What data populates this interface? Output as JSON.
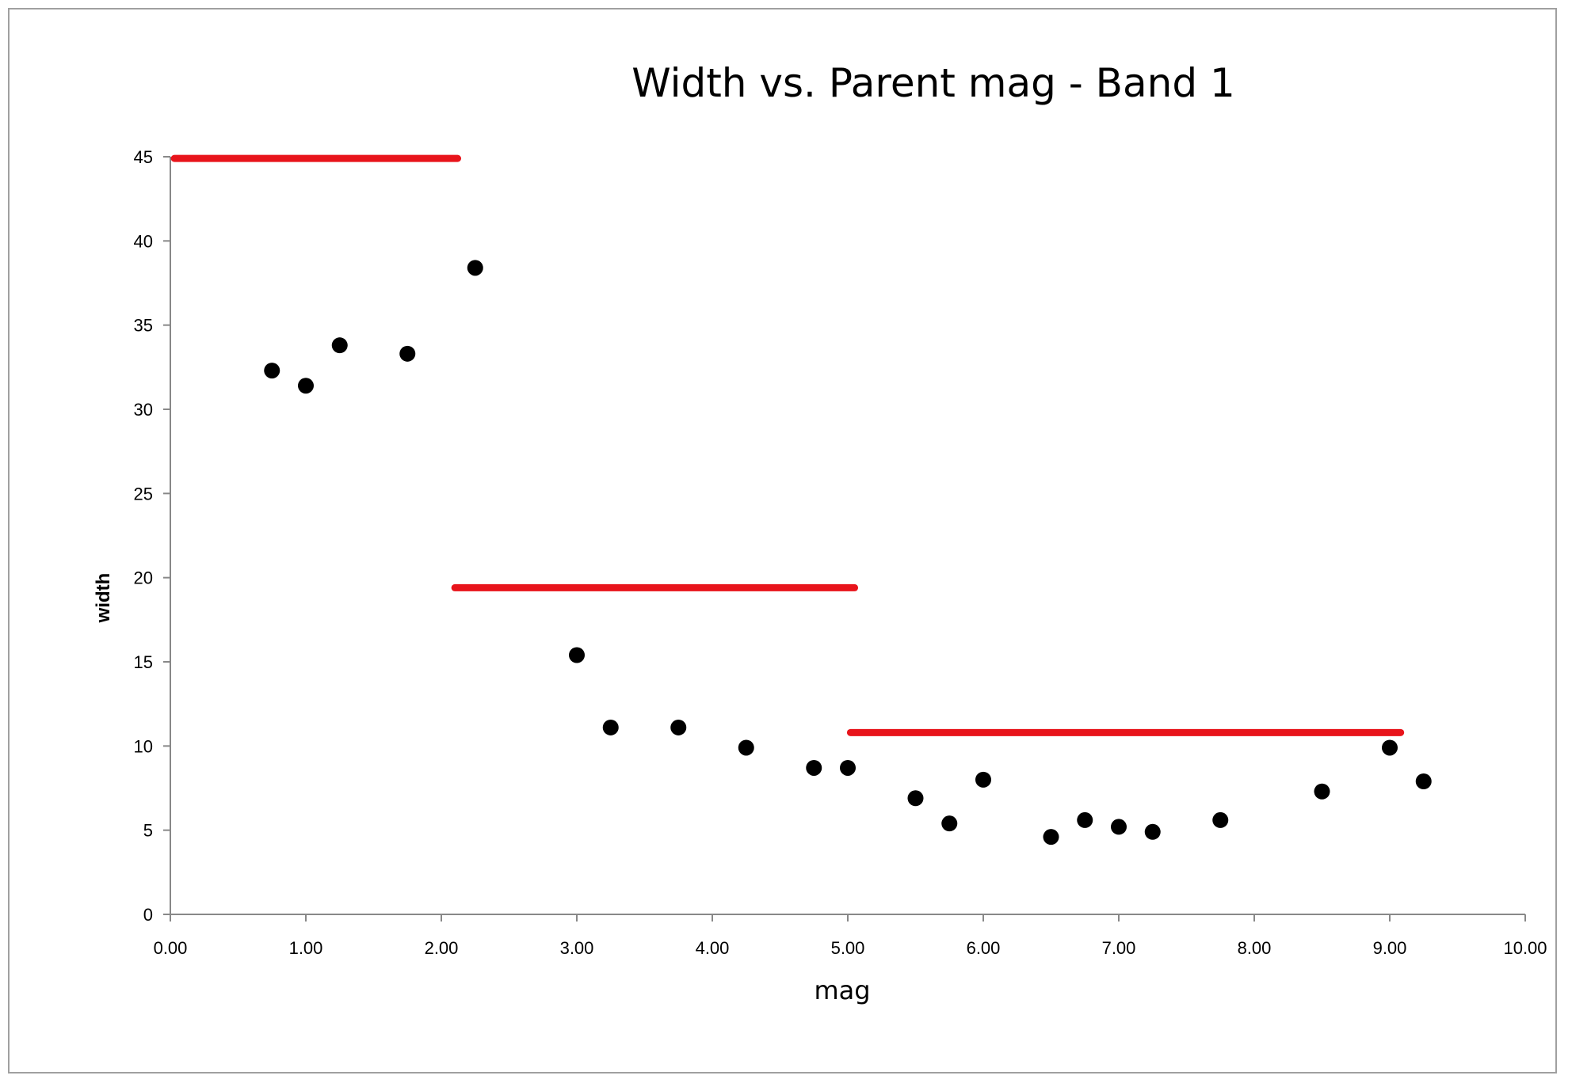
{
  "chart_data": {
    "type": "scatter",
    "title": "Width vs. Parent mag - Band 1",
    "xlabel": "mag",
    "ylabel": "width",
    "xlim": [
      0,
      10
    ],
    "ylim": [
      0,
      45
    ],
    "x_ticks": [
      "0.00",
      "1.00",
      "2.00",
      "3.00",
      "4.00",
      "5.00",
      "6.00",
      "7.00",
      "8.00",
      "9.00",
      "10.00"
    ],
    "y_ticks": [
      "0",
      "5",
      "10",
      "15",
      "20",
      "25",
      "30",
      "35",
      "40",
      "45"
    ],
    "grid": false,
    "legend": "none",
    "series": [
      {
        "type": "scatter",
        "color": "#000000",
        "points": [
          [
            0.75,
            32.3
          ],
          [
            1.0,
            31.4
          ],
          [
            1.25,
            33.8
          ],
          [
            1.75,
            33.3
          ],
          [
            2.25,
            38.4
          ],
          [
            3.0,
            15.4
          ],
          [
            3.25,
            11.1
          ],
          [
            3.75,
            11.1
          ],
          [
            4.25,
            9.9
          ],
          [
            4.75,
            8.7
          ],
          [
            5.0,
            8.7
          ],
          [
            5.5,
            6.9
          ],
          [
            5.75,
            5.4
          ],
          [
            6.0,
            8.0
          ],
          [
            6.5,
            4.6
          ],
          [
            6.75,
            5.6
          ],
          [
            7.0,
            5.2
          ],
          [
            7.25,
            4.9
          ],
          [
            7.75,
            5.6
          ],
          [
            8.5,
            7.3
          ],
          [
            9.0,
            9.9
          ],
          [
            9.25,
            7.9
          ]
        ]
      },
      {
        "type": "segments",
        "color": "#e8141b",
        "segments": [
          {
            "x": [
              0.03,
              2.12
            ],
            "y": 44.9
          },
          {
            "x": [
              2.1,
              5.05
            ],
            "y": 19.4
          },
          {
            "x": [
              5.02,
              9.08
            ],
            "y": 10.8
          }
        ]
      }
    ]
  }
}
